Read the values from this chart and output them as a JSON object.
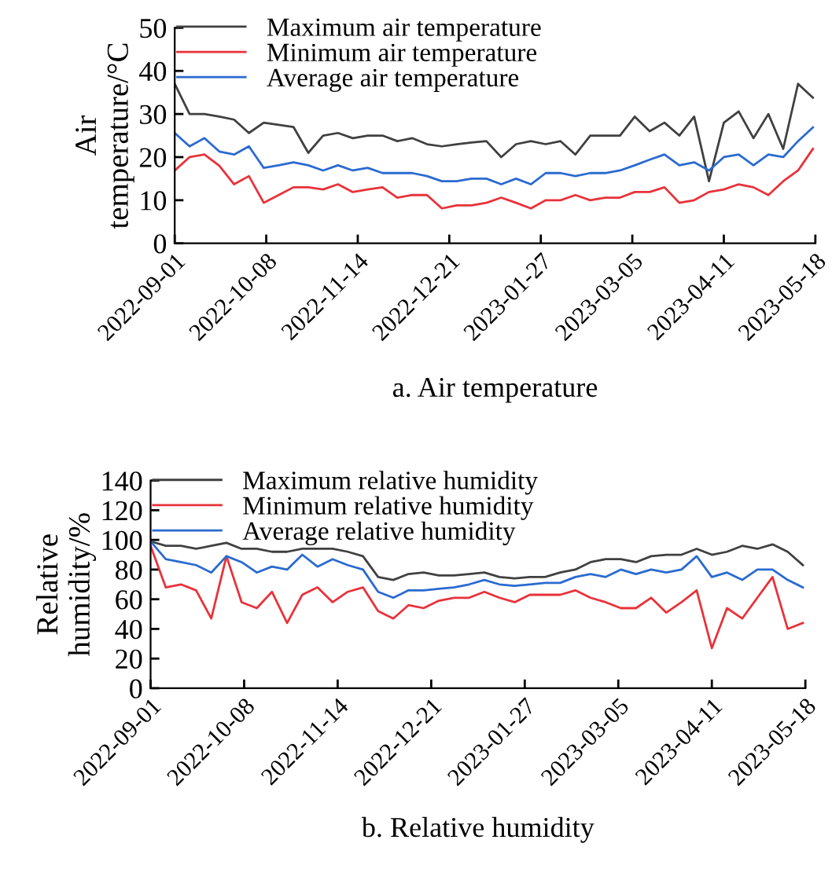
{
  "chart_data": [
    {
      "type": "line",
      "ylabel": "Air\ntemperature/°C",
      "annotations": [
        "a. Air temperature"
      ],
      "x": [
        "2022-09-01",
        "2022-09-07",
        "2022-09-13",
        "2022-09-19",
        "2022-09-25",
        "2022-10-01",
        "2022-10-07",
        "2022-10-13",
        "2022-10-19",
        "2022-10-25",
        "2022-10-31",
        "2022-11-06",
        "2022-11-12",
        "2022-11-18",
        "2022-11-24",
        "2022-11-30",
        "2022-12-06",
        "2022-12-12",
        "2022-12-18",
        "2022-12-24",
        "2022-12-30",
        "2023-01-05",
        "2023-01-11",
        "2023-01-17",
        "2023-01-23",
        "2023-01-29",
        "2023-02-04",
        "2023-02-10",
        "2023-02-16",
        "2023-02-22",
        "2023-02-28",
        "2023-03-06",
        "2023-03-12",
        "2023-03-18",
        "2023-03-24",
        "2023-03-30",
        "2023-04-05",
        "2023-04-11",
        "2023-04-17",
        "2023-04-23",
        "2023-04-29",
        "2023-05-05",
        "2023-05-11",
        "2023-05-17"
      ],
      "series": [
        {
          "name": "Maximum air temperature",
          "color": "#404040",
          "values": [
            37,
            30,
            30,
            29.4,
            28.7,
            25.6,
            28,
            27.5,
            27,
            21,
            25,
            25.6,
            24.4,
            25,
            25,
            23.7,
            24.4,
            23,
            22.5,
            23,
            23.4,
            23.7,
            20,
            23,
            23.7,
            23,
            23.7,
            20.6,
            25,
            25,
            25,
            29.4,
            26,
            28,
            25,
            29.4,
            14.4,
            28,
            30.6,
            24.4,
            30,
            21.9,
            37,
            33.8
          ]
        },
        {
          "name": "Minimum air temperature",
          "color": "#e8323a",
          "values": [
            16.9,
            20,
            20.6,
            18,
            13.7,
            15.6,
            9.4,
            11.2,
            13,
            13,
            12.5,
            13.7,
            11.9,
            12.5,
            13,
            10.6,
            11.2,
            11.2,
            8.1,
            8.8,
            8.8,
            9.4,
            10.6,
            9.4,
            8.1,
            10,
            10,
            11.2,
            10,
            10.6,
            10.6,
            11.9,
            11.9,
            13,
            9.4,
            10,
            11.9,
            12.5,
            13.7,
            13,
            11.2,
            14.4,
            16.9,
            21.9
          ]
        },
        {
          "name": "Average air temperature",
          "color": "#2a6ad0",
          "values": [
            25.6,
            22.5,
            24.4,
            21.3,
            20.6,
            22.5,
            17.5,
            18.1,
            18.8,
            18.1,
            16.9,
            18.1,
            16.9,
            17.5,
            16.3,
            16.3,
            16.3,
            15.6,
            14.4,
            14.4,
            15,
            15,
            13.7,
            15,
            13.7,
            16.3,
            16.3,
            15.6,
            16.3,
            16.3,
            16.9,
            18.1,
            19.4,
            20.6,
            18.1,
            18.8,
            16.9,
            20,
            20.6,
            18.1,
            20.6,
            20,
            23.7,
            26.9
          ]
        }
      ],
      "xlim": [
        "2022-09-01",
        "2023-05-18"
      ],
      "xticks": [
        "2022-09-01",
        "2022-10-08",
        "2022-11-14",
        "2022-12-21",
        "2023-01-27",
        "2023-03-05",
        "2023-04-11",
        "2023-05-18"
      ],
      "ylim": [
        0,
        50
      ],
      "yticks": [
        0,
        10,
        20,
        30,
        40,
        50
      ],
      "legend": "top left",
      "grid": false,
      "line_style": "solid"
    },
    {
      "type": "line",
      "ylabel": "Relative\nhumidity/%",
      "annotations": [
        "b. Relative humidity"
      ],
      "x": [
        "2022-09-01",
        "2022-09-07",
        "2022-09-13",
        "2022-09-19",
        "2022-09-25",
        "2022-10-01",
        "2022-10-07",
        "2022-10-13",
        "2022-10-19",
        "2022-10-25",
        "2022-10-31",
        "2022-11-06",
        "2022-11-12",
        "2022-11-18",
        "2022-11-24",
        "2022-11-30",
        "2022-12-06",
        "2022-12-12",
        "2022-12-18",
        "2022-12-24",
        "2022-12-30",
        "2023-01-05",
        "2023-01-11",
        "2023-01-17",
        "2023-01-23",
        "2023-01-29",
        "2023-02-04",
        "2023-02-10",
        "2023-02-16",
        "2023-02-22",
        "2023-02-28",
        "2023-03-06",
        "2023-03-12",
        "2023-03-18",
        "2023-03-24",
        "2023-03-30",
        "2023-04-05",
        "2023-04-11",
        "2023-04-17",
        "2023-04-23",
        "2023-04-29",
        "2023-05-05",
        "2023-05-11",
        "2023-05-17"
      ],
      "series": [
        {
          "name": "Maximum relative humidity",
          "color": "#404040",
          "values": [
            99,
            96,
            96,
            94,
            96,
            98,
            94,
            94,
            92,
            92,
            94,
            94,
            94,
            92,
            89,
            75,
            73,
            77,
            78,
            76,
            76,
            77,
            78,
            75,
            74,
            75,
            75,
            78,
            80,
            85,
            87,
            87,
            85,
            89,
            90,
            90,
            94,
            90,
            92,
            96,
            94,
            97,
            92,
            83
          ]
        },
        {
          "name": "Minimum relative humidity",
          "color": "#e8323a",
          "values": [
            96,
            68,
            70,
            66,
            47,
            89,
            58,
            54,
            65,
            44,
            63,
            68,
            58,
            65,
            68,
            52,
            47,
            56,
            54,
            59,
            61,
            61,
            65,
            61,
            58,
            63,
            63,
            63,
            66,
            61,
            58,
            54,
            54,
            61,
            51,
            58,
            66,
            27,
            54,
            47,
            61,
            75,
            40,
            44
          ]
        },
        {
          "name": "Average relative humidity",
          "color": "#2a6ad0",
          "values": [
            99,
            87,
            85,
            83,
            78,
            89,
            85,
            78,
            82,
            80,
            90,
            82,
            87,
            83,
            80,
            65,
            61,
            66,
            66,
            67,
            68,
            70,
            73,
            70,
            69,
            70,
            71,
            71,
            75,
            77,
            75,
            80,
            77,
            80,
            78,
            80,
            89,
            75,
            78,
            73,
            80,
            80,
            73,
            68
          ]
        }
      ],
      "xlim": [
        "2022-09-01",
        "2023-05-18"
      ],
      "xticks": [
        "2022-09-01",
        "2022-10-08",
        "2022-11-14",
        "2022-12-21",
        "2023-01-27",
        "2023-03-05",
        "2023-04-11",
        "2023-05-18"
      ],
      "ylim": [
        0,
        140
      ],
      "yticks": [
        0,
        20,
        40,
        60,
        80,
        100,
        120,
        140
      ],
      "legend": "top left",
      "grid": false,
      "line_style": "solid"
    }
  ]
}
